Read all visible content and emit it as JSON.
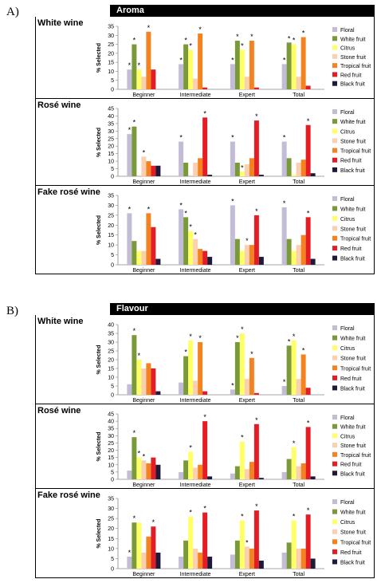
{
  "figure": {
    "sections": [
      {
        "label": "A)",
        "header": "Aroma"
      },
      {
        "label": "B)",
        "header": "Flavour"
      }
    ],
    "ylabel": "% Selected",
    "legend": [
      "Floral",
      "White fruit",
      "Citrus",
      "Stone fruit",
      "Tropical fruit",
      "Red fruit",
      "Black fruit"
    ],
    "colors": [
      "#c3bcd6",
      "#7a9a3a",
      "#ffff66",
      "#fad0b0",
      "#f58220",
      "#e51c23",
      "#1f1a3b"
    ],
    "categories": [
      "Beginner",
      "Intermediate",
      "Expert",
      "Total"
    ]
  },
  "chart_data": [
    {
      "type": "bar",
      "section": "Aroma",
      "title": "White wine",
      "ylim": [
        0,
        35
      ],
      "ticks": [
        0,
        5,
        10,
        15,
        20,
        25,
        30,
        35
      ],
      "categories": [
        "Beginner",
        "Intermediate",
        "Expert",
        "Total"
      ],
      "series": [
        {
          "name": "Floral",
          "values": [
            11,
            14,
            14,
            14
          ]
        },
        {
          "name": "White fruit",
          "values": [
            25,
            25,
            27,
            26
          ]
        },
        {
          "name": "Citrus",
          "values": [
            11,
            22,
            22,
            25
          ]
        },
        {
          "name": "Stone fruit",
          "values": [
            7,
            6,
            7,
            7
          ]
        },
        {
          "name": "Tropical fruit",
          "values": [
            32,
            31,
            27,
            29
          ]
        },
        {
          "name": "Red fruit",
          "values": [
            11,
            1,
            1,
            2
          ]
        },
        {
          "name": "Black fruit",
          "values": [
            0,
            0,
            0,
            0
          ]
        }
      ],
      "stars": [
        [
          0,
          0
        ],
        [
          0,
          1
        ],
        [
          0,
          2
        ],
        [
          0,
          4
        ],
        [
          1,
          0
        ],
        [
          1,
          1
        ],
        [
          1,
          2
        ],
        [
          1,
          4
        ],
        [
          2,
          0
        ],
        [
          2,
          1
        ],
        [
          2,
          2
        ],
        [
          2,
          4
        ],
        [
          3,
          0
        ],
        [
          3,
          1
        ],
        [
          3,
          2
        ],
        [
          3,
          4
        ]
      ]
    },
    {
      "type": "bar",
      "section": "Aroma",
      "title": "Rosé wine",
      "ylim": [
        0,
        45
      ],
      "ticks": [
        0,
        5,
        10,
        15,
        20,
        25,
        30,
        35,
        40,
        45
      ],
      "categories": [
        "Beginner",
        "Intermediate",
        "Expert",
        "Total"
      ],
      "series": [
        {
          "name": "Floral",
          "values": [
            28,
            23,
            23,
            23
          ]
        },
        {
          "name": "White fruit",
          "values": [
            33,
            9,
            9,
            12
          ]
        },
        {
          "name": "Citrus",
          "values": [
            0,
            0,
            3,
            1
          ]
        },
        {
          "name": "Stone fruit",
          "values": [
            13,
            9,
            8,
            9
          ]
        },
        {
          "name": "Tropical fruit",
          "values": [
            10,
            12,
            12,
            11
          ]
        },
        {
          "name": "Red fruit",
          "values": [
            7,
            39,
            37,
            34
          ]
        },
        {
          "name": "Black fruit",
          "values": [
            7,
            1,
            1,
            2
          ]
        }
      ],
      "stars": [
        [
          0,
          0
        ],
        [
          0,
          1
        ],
        [
          0,
          3
        ],
        [
          1,
          0
        ],
        [
          1,
          5
        ],
        [
          2,
          0
        ],
        [
          2,
          2
        ],
        [
          2,
          5
        ],
        [
          3,
          0
        ],
        [
          3,
          5
        ]
      ]
    },
    {
      "type": "bar",
      "section": "Aroma",
      "title": "Fake rosé wine",
      "ylim": [
        0,
        35
      ],
      "ticks": [
        0,
        5,
        10,
        15,
        20,
        25,
        30,
        35
      ],
      "categories": [
        "Beginner",
        "Intermediate",
        "Expert",
        "Total"
      ],
      "series": [
        {
          "name": "Floral",
          "values": [
            26,
            28,
            30,
            29
          ]
        },
        {
          "name": "White fruit",
          "values": [
            12,
            24,
            13,
            13
          ]
        },
        {
          "name": "Citrus",
          "values": [
            7,
            17,
            7,
            7
          ]
        },
        {
          "name": "Stone fruit",
          "values": [
            7,
            13,
            10,
            10
          ]
        },
        {
          "name": "Tropical fruit",
          "values": [
            26,
            8,
            10,
            15
          ]
        },
        {
          "name": "Red fruit",
          "values": [
            19,
            7,
            25,
            24
          ]
        },
        {
          "name": "Black fruit",
          "values": [
            3,
            4,
            4,
            3
          ]
        }
      ],
      "stars": [
        [
          0,
          0
        ],
        [
          0,
          4
        ],
        [
          1,
          0
        ],
        [
          1,
          1
        ],
        [
          1,
          2
        ],
        [
          1,
          3
        ],
        [
          2,
          0
        ],
        [
          2,
          3
        ],
        [
          2,
          5
        ],
        [
          3,
          0
        ],
        [
          3,
          5
        ]
      ]
    },
    {
      "type": "bar",
      "section": "Flavour",
      "title": "White wine",
      "ylim": [
        0,
        40
      ],
      "ticks": [
        0,
        5,
        10,
        15,
        20,
        25,
        30,
        35,
        40
      ],
      "categories": [
        "Beginner",
        "Intermediate",
        "Expert",
        "Total"
      ],
      "series": [
        {
          "name": "Floral",
          "values": [
            6,
            7,
            3,
            5
          ]
        },
        {
          "name": "White fruit",
          "values": [
            34,
            22,
            30,
            28
          ]
        },
        {
          "name": "Citrus",
          "values": [
            20,
            31,
            35,
            31
          ]
        },
        {
          "name": "Stone fruit",
          "values": [
            15,
            8,
            9,
            9
          ]
        },
        {
          "name": "Tropical fruit",
          "values": [
            18,
            30,
            21,
            23
          ]
        },
        {
          "name": "Red fruit",
          "values": [
            15,
            2,
            1,
            4
          ]
        },
        {
          "name": "Black fruit",
          "values": [
            2,
            0,
            0,
            0
          ]
        }
      ],
      "stars": [
        [
          0,
          1
        ],
        [
          0,
          2
        ],
        [
          1,
          1
        ],
        [
          1,
          2
        ],
        [
          1,
          4
        ],
        [
          2,
          0
        ],
        [
          2,
          1
        ],
        [
          2,
          2
        ],
        [
          2,
          4
        ],
        [
          3,
          0
        ],
        [
          3,
          1
        ],
        [
          3,
          2
        ],
        [
          3,
          4
        ]
      ]
    },
    {
      "type": "bar",
      "section": "Flavour",
      "title": "Rosé wine",
      "ylim": [
        0,
        45
      ],
      "ticks": [
        0,
        5,
        10,
        15,
        20,
        25,
        30,
        35,
        40,
        45
      ],
      "categories": [
        "Beginner",
        "Intermediate",
        "Expert",
        "Total"
      ],
      "series": [
        {
          "name": "Floral",
          "values": [
            6,
            5,
            4,
            5
          ]
        },
        {
          "name": "White fruit",
          "values": [
            29,
            13,
            9,
            14
          ]
        },
        {
          "name": "Citrus",
          "values": [
            15,
            19,
            26,
            22
          ]
        },
        {
          "name": "Stone fruit",
          "values": [
            13,
            8,
            7,
            9
          ]
        },
        {
          "name": "Tropical fruit",
          "values": [
            11,
            10,
            12,
            11
          ]
        },
        {
          "name": "Red fruit",
          "values": [
            15,
            40,
            38,
            36
          ]
        },
        {
          "name": "Black fruit",
          "values": [
            10,
            2,
            1,
            2
          ]
        }
      ],
      "stars": [
        [
          0,
          1
        ],
        [
          0,
          2
        ],
        [
          0,
          3
        ],
        [
          1,
          2
        ],
        [
          1,
          5
        ],
        [
          2,
          2
        ],
        [
          2,
          5
        ],
        [
          3,
          2
        ],
        [
          3,
          5
        ]
      ]
    },
    {
      "type": "bar",
      "section": "Flavour",
      "title": "Fake rosé wine",
      "ylim": [
        0,
        35
      ],
      "ticks": [
        0,
        5,
        10,
        15,
        20,
        25,
        30,
        35
      ],
      "categories": [
        "Beginner",
        "Intermediate",
        "Expert",
        "Total"
      ],
      "series": [
        {
          "name": "Floral",
          "values": [
            6,
            6,
            7,
            8
          ]
        },
        {
          "name": "White fruit",
          "values": [
            23,
            14,
            14,
            13
          ]
        },
        {
          "name": "Citrus",
          "values": [
            23,
            26,
            24,
            24
          ]
        },
        {
          "name": "Stone fruit",
          "values": [
            8,
            10,
            11,
            10
          ]
        },
        {
          "name": "Tropical fruit",
          "values": [
            16,
            8,
            10,
            10
          ]
        },
        {
          "name": "Red fruit",
          "values": [
            21,
            28,
            29,
            27
          ]
        },
        {
          "name": "Black fruit",
          "values": [
            8,
            6,
            4,
            5
          ]
        }
      ],
      "stars": [
        [
          0,
          0
        ],
        [
          0,
          1
        ],
        [
          0,
          5
        ],
        [
          1,
          2
        ],
        [
          1,
          5
        ],
        [
          2,
          2
        ],
        [
          2,
          3
        ],
        [
          2,
          5
        ],
        [
          3,
          2
        ],
        [
          3,
          5
        ]
      ]
    }
  ]
}
